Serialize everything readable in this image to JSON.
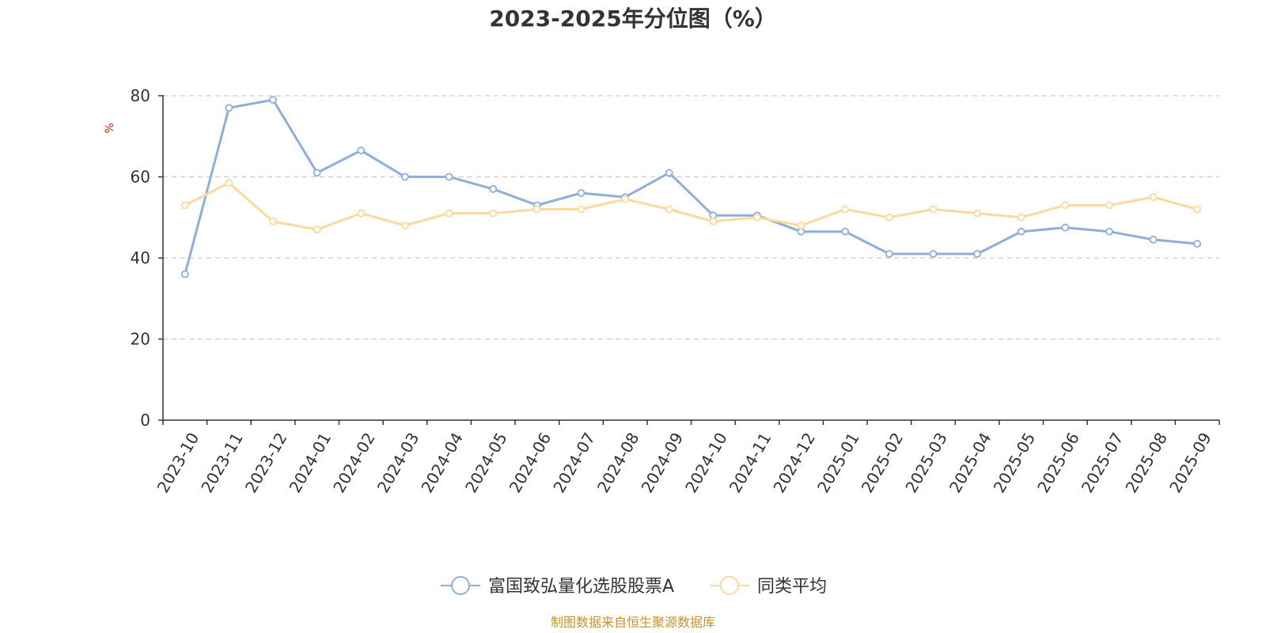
{
  "chart_data": {
    "type": "line",
    "title": "2023-2025年分位图（%）",
    "ylabel": "%",
    "ylim": [
      0,
      80
    ],
    "yticks": [
      0,
      20,
      40,
      60,
      80
    ],
    "grid": true,
    "legend_position": "bottom-center",
    "categories": [
      "2023-10",
      "2023-11",
      "2023-12",
      "2024-01",
      "2024-02",
      "2024-03",
      "2024-04",
      "2024-05",
      "2024-06",
      "2024-07",
      "2024-08",
      "2024-09",
      "2024-10",
      "2024-11",
      "2024-12",
      "2025-01",
      "2025-02",
      "2025-03",
      "2025-04",
      "2025-05",
      "2025-06",
      "2025-07",
      "2025-08",
      "2025-09"
    ],
    "series": [
      {
        "name": "富国致弘量化选股股票A",
        "color": "#8eaedb",
        "values": [
          36,
          77,
          79,
          61,
          66.5,
          60,
          60,
          57,
          53,
          56,
          55,
          61,
          50.5,
          50.5,
          46.5,
          46.5,
          41,
          41,
          41,
          46.5,
          47.5,
          46.5,
          44.5,
          43.5
        ]
      },
      {
        "name": "同类平均",
        "color": "#fdd99b",
        "values": [
          53,
          58.5,
          49,
          47,
          51,
          48,
          51,
          51,
          52,
          52,
          54.5,
          52,
          49,
          50,
          48,
          52,
          50,
          52,
          51,
          50,
          53,
          53,
          55,
          52
        ]
      }
    ]
  },
  "footer": "制图数据来自恒生聚源数据库"
}
